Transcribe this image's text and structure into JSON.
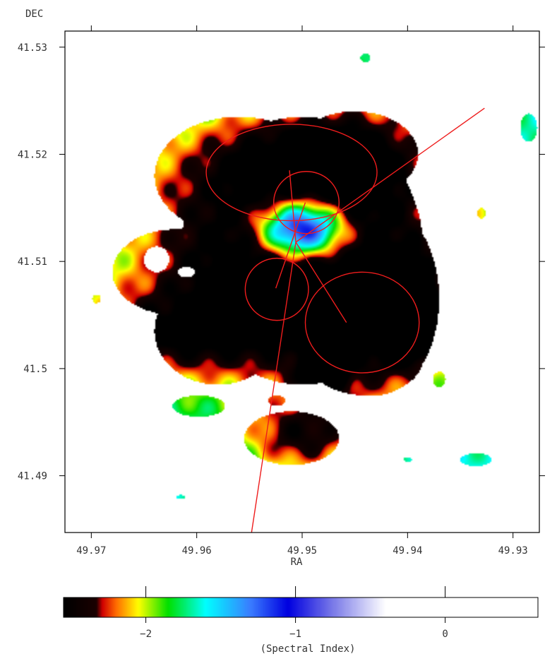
{
  "chart_data": {
    "type": "heatmap",
    "title": "",
    "xlabel": "RA",
    "ylabel": "DEC",
    "x_range": [
      49.9725,
      49.9275
    ],
    "y_range": [
      41.4847,
      41.5315
    ],
    "x_ticks": [
      {
        "value": 49.97,
        "label": "49.97"
      },
      {
        "value": 49.96,
        "label": "49.96"
      },
      {
        "value": 49.95,
        "label": "49.95"
      },
      {
        "value": 49.94,
        "label": "49.94"
      },
      {
        "value": 49.93,
        "label": "49.93"
      }
    ],
    "y_ticks": [
      {
        "value": 41.53,
        "label": "41.53"
      },
      {
        "value": 41.52,
        "label": "41.52"
      },
      {
        "value": 41.51,
        "label": "41.51"
      },
      {
        "value": 41.5,
        "label": "41.5"
      },
      {
        "value": 41.49,
        "label": "41.49"
      }
    ],
    "colorbar": {
      "label": "(Spectral Index)",
      "range": [
        -2.55,
        0.62
      ],
      "ticks": [
        {
          "value": -2,
          "label": "−2"
        },
        {
          "value": -1,
          "label": "−1"
        },
        {
          "value": 0,
          "label": "0"
        }
      ],
      "colormap": [
        {
          "v": -2.55,
          "c": "#000000"
        },
        {
          "v": -2.33,
          "c": "#1a0000"
        },
        {
          "v": -2.29,
          "c": "#d00000"
        },
        {
          "v": -2.2,
          "c": "#ff6a00"
        },
        {
          "v": -2.05,
          "c": "#ffff00"
        },
        {
          "v": -1.85,
          "c": "#00e000"
        },
        {
          "v": -1.6,
          "c": "#00ffff"
        },
        {
          "v": -1.3,
          "c": "#3a7cff"
        },
        {
          "v": -1.05,
          "c": "#0000e0"
        },
        {
          "v": -0.75,
          "c": "#7a7ae8"
        },
        {
          "v": -0.4,
          "c": "#ffffff"
        },
        {
          "v": 0.62,
          "c": "#ffffff"
        }
      ]
    },
    "field_blobs": [
      {
        "ra": 49.9505,
        "dec": 41.5118,
        "sr": 0.0115,
        "sd": 0.0085,
        "a": -1.15
      },
      {
        "ra": 49.9545,
        "dec": 41.5085,
        "sr": 0.0065,
        "sd": 0.0045,
        "a": -0.15
      },
      {
        "ra": 49.9505,
        "dec": 41.5195,
        "sr": 0.008,
        "sd": 0.003,
        "a": -0.35
      },
      {
        "ra": 49.9435,
        "dec": 41.5025,
        "sr": 0.006,
        "sd": 0.005,
        "a": -0.55
      },
      {
        "ra": 49.945,
        "dec": 41.52,
        "sr": 0.005,
        "sd": 0.004,
        "a": -0.35
      },
      {
        "ra": 49.95,
        "dec": 41.513,
        "sr": 0.003,
        "sd": 0.002,
        "a": 1.8
      },
      {
        "ra": 49.94,
        "dec": 41.5055,
        "sr": 0.0015,
        "sd": 0.0025,
        "a": -2.2
      },
      {
        "ra": 49.948,
        "dec": 41.4995,
        "sr": 0.0012,
        "sd": 0.001,
        "a": -1.5
      },
      {
        "ra": 49.963,
        "dec": 41.503,
        "sr": 0.007,
        "sd": 0.003,
        "a": -0.6
      },
      {
        "ra": 49.95,
        "dec": 41.4935,
        "sr": 0.004,
        "sd": 0.0025,
        "a": -0.7
      }
    ],
    "mask_regions": [
      {
        "ra": 49.95,
        "dec": 41.511,
        "rr": 0.0115,
        "rd": 0.0125
      },
      {
        "ra": 49.943,
        "dec": 41.5065,
        "rr": 0.006,
        "rd": 0.009
      },
      {
        "ra": 49.956,
        "dec": 41.518,
        "rr": 0.008,
        "rd": 0.0055
      },
      {
        "ra": 49.962,
        "dec": 41.509,
        "rr": 0.006,
        "rd": 0.004
      },
      {
        "ra": 49.958,
        "dec": 41.5035,
        "rr": 0.006,
        "rd": 0.005
      },
      {
        "ra": 49.944,
        "dec": 41.501,
        "rr": 0.0055,
        "rd": 0.0035
      },
      {
        "ra": 49.945,
        "dec": 41.52,
        "rr": 0.006,
        "rd": 0.004
      },
      {
        "ra": 49.9455,
        "dec": 41.5185,
        "rr": 0.0055,
        "rd": 0.004
      },
      {
        "ra": 49.951,
        "dec": 41.4935,
        "rr": 0.0045,
        "rd": 0.0025
      },
      {
        "ra": 49.9598,
        "dec": 41.4965,
        "rr": 0.0025,
        "rd": 0.001
      },
      {
        "ra": 49.9524,
        "dec": 41.497,
        "rr": 0.0008,
        "rd": 0.0005
      },
      {
        "ra": 49.9695,
        "dec": 41.5065,
        "rr": 0.0004,
        "rd": 0.0004
      },
      {
        "ra": 49.9335,
        "dec": 41.4915,
        "rr": 0.0015,
        "rd": 0.0006
      },
      {
        "ra": 49.9285,
        "dec": 41.5225,
        "rr": 0.0008,
        "rd": 0.0013
      },
      {
        "ra": 49.937,
        "dec": 41.499,
        "rr": 0.0006,
        "rd": 0.0007
      },
      {
        "ra": 49.94,
        "dec": 41.4915,
        "rr": 0.0004,
        "rd": 0.0002
      },
      {
        "ra": 49.944,
        "dec": 41.529,
        "rr": 0.0005,
        "rd": 0.0004
      },
      {
        "ra": 49.933,
        "dec": 41.5145,
        "rr": 0.0004,
        "rd": 0.0005
      },
      {
        "ra": 49.9615,
        "dec": 41.488,
        "rr": 0.0004,
        "rd": 0.0002
      }
    ],
    "hole_regions": [
      {
        "ra": 49.9638,
        "dec": 41.5102,
        "rr": 0.0012,
        "rd": 0.0012
      },
      {
        "ra": 49.961,
        "dec": 41.509,
        "rr": 0.0008,
        "rd": 0.0005
      }
    ],
    "overlay": {
      "color": "#ee1c1c",
      "ellipses": [
        {
          "ra": 49.951,
          "dec": 41.5183,
          "rr": 0.0081,
          "rd": 0.0045
        },
        {
          "ra": 49.9496,
          "dec": 41.5155,
          "rr": 0.0031,
          "rd": 0.0029
        },
        {
          "ra": 49.9524,
          "dec": 41.5074,
          "rr": 0.003,
          "rd": 0.0029
        },
        {
          "ra": 49.9443,
          "dec": 41.5043,
          "rr": 0.0054,
          "rd": 0.0047
        }
      ],
      "lines": [
        {
          "ra1": 49.9548,
          "dec1": 41.4847,
          "ra2": 49.9506,
          "dec2": 41.5118
        },
        {
          "ra1": 49.9506,
          "dec1": 41.5118,
          "ra2": 49.9327,
          "dec2": 41.5243
        },
        {
          "ra1": 49.9506,
          "dec1": 41.5118,
          "ra2": 49.9458,
          "dec2": 41.5043
        },
        {
          "ra1": 49.9506,
          "dec1": 41.5118,
          "ra2": 49.9512,
          "dec2": 41.5185
        },
        {
          "ra1": 49.9525,
          "dec1": 41.5075,
          "ra2": 49.9497,
          "dec2": 41.5155
        }
      ]
    }
  }
}
